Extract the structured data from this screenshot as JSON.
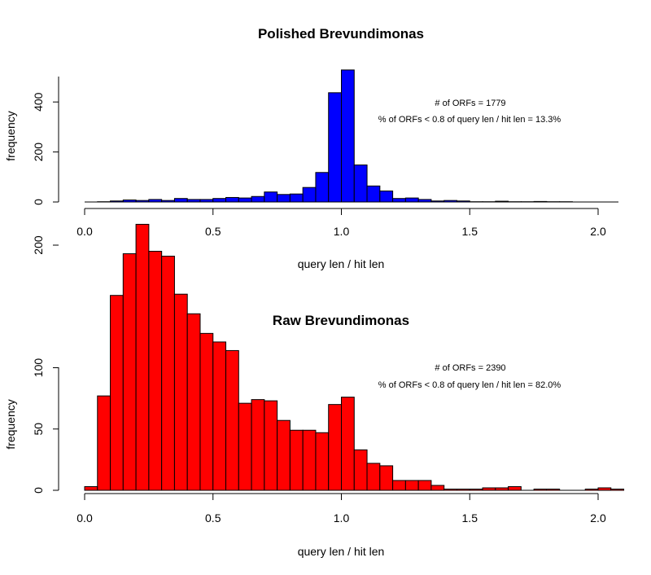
{
  "chart_data": [
    {
      "type": "bar",
      "title": "Polished Brevundimonas",
      "xlabel": "query len / hit len",
      "ylabel": "frequency",
      "xlim": [
        0,
        2.1
      ],
      "ylim": [
        0,
        500
      ],
      "bin_width": 0.05,
      "x_ticks": [
        "0.0",
        "0.5",
        "1.0",
        "1.5",
        "2.0"
      ],
      "y_ticks": [
        "0",
        "200",
        "400"
      ],
      "bar_color": "#0000ff",
      "annotations": [
        "# of ORFs = 1779",
        "% of ORFs < 0.8 of query len / hit len = 13.3%"
      ],
      "bins": [
        {
          "x": 0.05,
          "y": 1
        },
        {
          "x": 0.1,
          "y": 4
        },
        {
          "x": 0.15,
          "y": 8
        },
        {
          "x": 0.2,
          "y": 6
        },
        {
          "x": 0.25,
          "y": 10
        },
        {
          "x": 0.3,
          "y": 6
        },
        {
          "x": 0.35,
          "y": 14
        },
        {
          "x": 0.4,
          "y": 10
        },
        {
          "x": 0.45,
          "y": 10
        },
        {
          "x": 0.5,
          "y": 14
        },
        {
          "x": 0.55,
          "y": 18
        },
        {
          "x": 0.6,
          "y": 16
        },
        {
          "x": 0.65,
          "y": 22
        },
        {
          "x": 0.7,
          "y": 40
        },
        {
          "x": 0.75,
          "y": 30
        },
        {
          "x": 0.8,
          "y": 32
        },
        {
          "x": 0.85,
          "y": 58
        },
        {
          "x": 0.9,
          "y": 118
        },
        {
          "x": 0.95,
          "y": 437
        },
        {
          "x": 1.0,
          "y": 528
        },
        {
          "x": 1.05,
          "y": 148
        },
        {
          "x": 1.1,
          "y": 64
        },
        {
          "x": 1.15,
          "y": 44
        },
        {
          "x": 1.2,
          "y": 14
        },
        {
          "x": 1.25,
          "y": 16
        },
        {
          "x": 1.3,
          "y": 10
        },
        {
          "x": 1.35,
          "y": 4
        },
        {
          "x": 1.4,
          "y": 6
        },
        {
          "x": 1.45,
          "y": 4
        },
        {
          "x": 1.5,
          "y": 1
        },
        {
          "x": 1.55,
          "y": 1
        },
        {
          "x": 1.6,
          "y": 3
        },
        {
          "x": 1.65,
          "y": 1
        },
        {
          "x": 1.7,
          "y": 1
        },
        {
          "x": 1.75,
          "y": 2
        },
        {
          "x": 1.8,
          "y": 1
        },
        {
          "x": 1.85,
          "y": 1
        },
        {
          "x": 1.9,
          "y": 0
        },
        {
          "x": 1.95,
          "y": 0
        },
        {
          "x": 2.0,
          "y": 0
        }
      ]
    },
    {
      "type": "bar",
      "title": "Raw Brevundimonas",
      "xlabel": "query len / hit len",
      "ylabel": "frequency",
      "xlim": [
        0,
        2.1
      ],
      "ylim": [
        0,
        220
      ],
      "bin_width": 0.05,
      "x_ticks": [
        "0.0",
        "0.5",
        "1.0",
        "1.5",
        "2.0"
      ],
      "y_ticks": [
        "0",
        "50",
        "100",
        "200"
      ],
      "bar_color": "#ff0000",
      "annotations": [
        "# of ORFs = 2390",
        "% of ORFs < 0.8 of query len / hit len = 82.0%"
      ],
      "bins": [
        {
          "x": 0.0,
          "y": 3
        },
        {
          "x": 0.05,
          "y": 77
        },
        {
          "x": 0.1,
          "y": 159
        },
        {
          "x": 0.15,
          "y": 193
        },
        {
          "x": 0.2,
          "y": 217
        },
        {
          "x": 0.25,
          "y": 195
        },
        {
          "x": 0.3,
          "y": 191
        },
        {
          "x": 0.35,
          "y": 160
        },
        {
          "x": 0.4,
          "y": 144
        },
        {
          "x": 0.45,
          "y": 128
        },
        {
          "x": 0.5,
          "y": 121
        },
        {
          "x": 0.55,
          "y": 114
        },
        {
          "x": 0.6,
          "y": 71
        },
        {
          "x": 0.65,
          "y": 74
        },
        {
          "x": 0.7,
          "y": 73
        },
        {
          "x": 0.75,
          "y": 57
        },
        {
          "x": 0.8,
          "y": 49
        },
        {
          "x": 0.85,
          "y": 49
        },
        {
          "x": 0.9,
          "y": 47
        },
        {
          "x": 0.95,
          "y": 70
        },
        {
          "x": 1.0,
          "y": 76
        },
        {
          "x": 1.05,
          "y": 33
        },
        {
          "x": 1.1,
          "y": 22
        },
        {
          "x": 1.15,
          "y": 20
        },
        {
          "x": 1.2,
          "y": 8
        },
        {
          "x": 1.25,
          "y": 8
        },
        {
          "x": 1.3,
          "y": 8
        },
        {
          "x": 1.35,
          "y": 4
        },
        {
          "x": 1.4,
          "y": 1
        },
        {
          "x": 1.45,
          "y": 1
        },
        {
          "x": 1.5,
          "y": 1
        },
        {
          "x": 1.55,
          "y": 2
        },
        {
          "x": 1.6,
          "y": 2
        },
        {
          "x": 1.65,
          "y": 3
        },
        {
          "x": 1.7,
          "y": 0
        },
        {
          "x": 1.75,
          "y": 1
        },
        {
          "x": 1.8,
          "y": 1
        },
        {
          "x": 1.85,
          "y": 0
        },
        {
          "x": 1.9,
          "y": 0
        },
        {
          "x": 1.95,
          "y": 1
        },
        {
          "x": 2.0,
          "y": 2
        },
        {
          "x": 2.05,
          "y": 1
        }
      ]
    }
  ]
}
